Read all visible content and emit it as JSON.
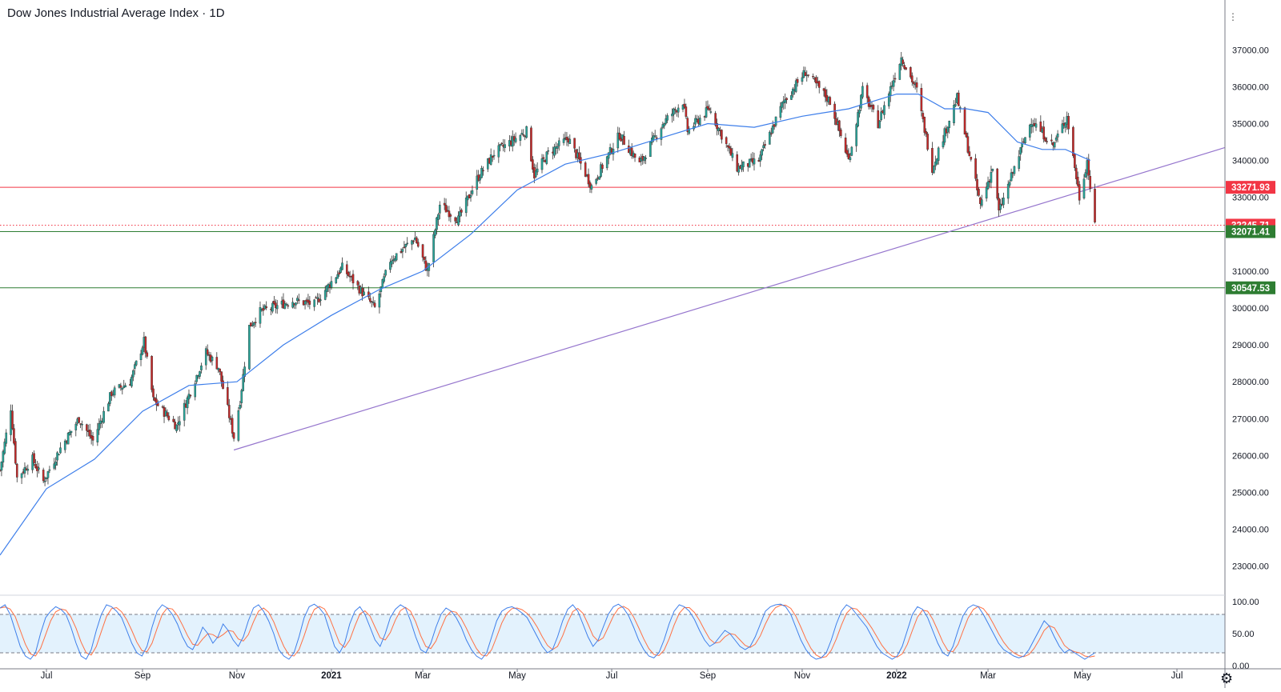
{
  "header": {
    "title": "Dow Jones Industrial Average Index · 1D"
  },
  "colors": {
    "up": "#26a69a",
    "down": "#c62828",
    "ma": "#3d7eea",
    "trendline": "#9575cd",
    "resistance": "#f23645",
    "support": "#2e7d32",
    "stoch_k": "#3d7eea",
    "stoch_d": "#ff7043",
    "stoch_band": "#e3f2fd"
  },
  "chart_data": [
    {
      "type": "candlestick",
      "title": "Dow Jones Industrial Average Index · 1D",
      "interval": "1D",
      "ylim": [
        22300,
        37700
      ],
      "y_ticks": [
        "23000.00",
        "24000.00",
        "25000.00",
        "26000.00",
        "27000.00",
        "28000.00",
        "29000.00",
        "30000.00",
        "31000.00",
        "32000.00",
        "33000.00",
        "34000.00",
        "35000.00",
        "36000.00",
        "37000.00"
      ],
      "x_ticks": [
        "Jul",
        "Sep",
        "Nov",
        "2021",
        "Mar",
        "May",
        "Jul",
        "Sep",
        "Nov",
        "2022",
        "Mar",
        "May",
        "Jul"
      ],
      "x_range": [
        "2020-06-01",
        "2022-08-01"
      ],
      "price_path": [
        [
          "2020-06-01",
          25600
        ],
        [
          "2020-06-08",
          27300
        ],
        [
          "2020-06-12",
          25400
        ],
        [
          "2020-06-22",
          25900
        ],
        [
          "2020-06-29",
          25300
        ],
        [
          "2020-07-10",
          26200
        ],
        [
          "2020-07-22",
          27000
        ],
        [
          "2020-07-31",
          26400
        ],
        [
          "2020-08-12",
          27700
        ],
        [
          "2020-08-24",
          28000
        ],
        [
          "2020-09-02",
          29100
        ],
        [
          "2020-09-08",
          27500
        ],
        [
          "2020-09-23",
          26800
        ],
        [
          "2020-10-12",
          28800
        ],
        [
          "2020-10-20",
          28400
        ],
        [
          "2020-10-30",
          26500
        ],
        [
          "2020-11-03",
          27500
        ],
        [
          "2020-11-09",
          29500
        ],
        [
          "2020-11-16",
          29900
        ],
        [
          "2020-12-07",
          30200
        ],
        [
          "2020-12-21",
          30100
        ],
        [
          "2021-01-08",
          31100
        ],
        [
          "2021-01-29",
          30000
        ],
        [
          "2021-02-08",
          31300
        ],
        [
          "2021-02-24",
          31900
        ],
        [
          "2021-03-04",
          31000
        ],
        [
          "2021-03-12",
          32800
        ],
        [
          "2021-03-24",
          32400
        ],
        [
          "2021-04-05",
          33500
        ],
        [
          "2021-04-16",
          34200
        ],
        [
          "2021-05-07",
          34800
        ],
        [
          "2021-05-12",
          33600
        ],
        [
          "2021-05-21",
          34200
        ],
        [
          "2021-06-03",
          34600
        ],
        [
          "2021-06-18",
          33300
        ],
        [
          "2021-07-06",
          34700
        ],
        [
          "2021-07-19",
          33900
        ],
        [
          "2021-08-03",
          35000
        ],
        [
          "2021-08-16",
          35600
        ],
        [
          "2021-08-19",
          34800
        ],
        [
          "2021-09-02",
          35400
        ],
        [
          "2021-09-20",
          33800
        ],
        [
          "2021-10-04",
          34000
        ],
        [
          "2021-10-20",
          35600
        ],
        [
          "2021-11-03",
          36400
        ],
        [
          "2021-11-19",
          35600
        ],
        [
          "2021-12-01",
          34000
        ],
        [
          "2021-12-10",
          35900
        ],
        [
          "2021-12-20",
          35000
        ],
        [
          "2022-01-04",
          36800
        ],
        [
          "2022-01-14",
          35900
        ],
        [
          "2022-01-24",
          33800
        ],
        [
          "2022-02-09",
          35700
        ],
        [
          "2022-02-24",
          32800
        ],
        [
          "2022-03-04",
          33800
        ],
        [
          "2022-03-08",
          32600
        ],
        [
          "2022-03-29",
          35100
        ],
        [
          "2022-04-12",
          34400
        ],
        [
          "2022-04-21",
          35200
        ],
        [
          "2022-04-29",
          33000
        ],
        [
          "2022-05-04",
          34000
        ],
        [
          "2022-05-09",
          32200
        ]
      ],
      "moving_average": [
        [
          "2020-06-01",
          23300
        ],
        [
          "2020-07-01",
          25100
        ],
        [
          "2020-08-01",
          25900
        ],
        [
          "2020-09-01",
          27200
        ],
        [
          "2020-10-01",
          27900
        ],
        [
          "2020-11-01",
          28000
        ],
        [
          "2020-12-01",
          29000
        ],
        [
          "2021-01-01",
          29800
        ],
        [
          "2021-02-01",
          30500
        ],
        [
          "2021-03-01",
          31000
        ],
        [
          "2021-04-01",
          32000
        ],
        [
          "2021-05-01",
          33200
        ],
        [
          "2021-06-01",
          33900
        ],
        [
          "2021-07-01",
          34200
        ],
        [
          "2021-08-01",
          34600
        ],
        [
          "2021-09-01",
          35000
        ],
        [
          "2021-10-01",
          34900
        ],
        [
          "2021-11-01",
          35200
        ],
        [
          "2021-12-01",
          35400
        ],
        [
          "2022-01-01",
          35800
        ],
        [
          "2022-01-15",
          35800
        ],
        [
          "2022-02-01",
          35400
        ],
        [
          "2022-02-15",
          35400
        ],
        [
          "2022-03-01",
          35300
        ],
        [
          "2022-03-20",
          34500
        ],
        [
          "2022-04-05",
          34300
        ],
        [
          "2022-04-20",
          34300
        ],
        [
          "2022-05-06",
          34000
        ]
      ],
      "horizontal_lines": [
        {
          "name": "resistance",
          "value": 33271.93,
          "label": "33271.93",
          "style": "solid"
        },
        {
          "name": "last-price",
          "value": 32245.71,
          "label": "32245.71",
          "style": "dotted"
        },
        {
          "name": "support-1",
          "value": 32071.41,
          "label": "32071.41",
          "style": "solid"
        },
        {
          "name": "support-2",
          "value": 30547.53,
          "label": "30547.53",
          "style": "solid"
        }
      ],
      "trendline": {
        "start": [
          "2020-10-30",
          26150
        ],
        "end": [
          "2022-08-01",
          34350
        ]
      },
      "last_price": 32245.71
    },
    {
      "type": "line",
      "title": "",
      "ylim": [
        0,
        100
      ],
      "y_ticks": [
        "100.00",
        "50.00",
        "0.00"
      ],
      "bands": {
        "upper": 80,
        "lower": 20
      },
      "series": [
        {
          "name": "",
          "values": [
            90,
            95,
            80,
            55,
            30,
            15,
            10,
            20,
            50,
            75,
            85,
            92,
            88,
            80,
            60,
            35,
            15,
            10,
            25,
            55,
            80,
            95,
            92,
            85,
            75,
            55,
            35,
            20,
            15,
            30,
            60,
            85,
            95,
            90,
            80,
            65,
            45,
            30,
            25,
            40,
            60,
            50,
            35,
            45,
            65,
            55,
            40,
            30,
            45,
            70,
            90,
            95,
            85,
            70,
            50,
            25,
            15,
            10,
            20,
            45,
            75,
            92,
            96,
            90,
            80,
            55,
            30,
            20,
            35,
            65,
            85,
            92,
            80,
            60,
            40,
            30,
            50,
            75,
            88,
            95,
            90,
            70,
            45,
            25,
            20,
            35,
            60,
            80,
            90,
            85,
            75,
            60,
            40,
            25,
            15,
            10,
            20,
            45,
            70,
            85,
            90,
            92,
            88,
            82,
            75,
            60,
            45,
            30,
            20,
            25,
            45,
            70,
            88,
            95,
            85,
            65,
            45,
            30,
            40,
            60,
            80,
            92,
            96,
            90,
            78,
            60,
            40,
            25,
            15,
            12,
            20,
            40,
            65,
            85,
            95,
            92,
            85,
            72,
            55,
            40,
            30,
            35,
            45,
            55,
            50,
            40,
            30,
            25,
            30,
            45,
            65,
            85,
            92,
            95,
            96,
            92,
            80,
            60,
            40,
            25,
            15,
            10,
            12,
            20,
            40,
            65,
            85,
            95,
            90,
            80,
            70,
            60,
            45,
            30,
            20,
            15,
            10,
            15,
            30,
            55,
            80,
            92,
            88,
            75,
            55,
            35,
            20,
            15,
            30,
            55,
            78,
            90,
            95,
            92,
            80,
            65,
            50,
            35,
            25,
            20,
            15,
            12,
            15,
            25,
            40,
            55,
            70,
            62,
            45,
            30,
            20,
            25,
            20,
            15,
            10,
            15,
            20
          ]
        }
      ]
    }
  ]
}
